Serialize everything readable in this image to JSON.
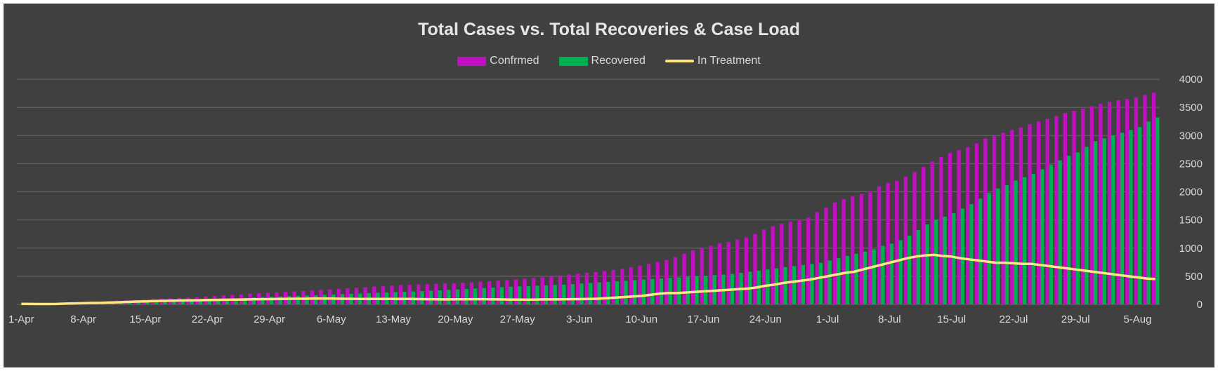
{
  "colors": {
    "background": "#404040",
    "grid": "#6b6b6b",
    "text": "#d9d9d9",
    "confirmed": "#c20fc2",
    "recovered": "#00b050",
    "in_treatment": "#ffe680"
  },
  "chart_data": {
    "type": "bar",
    "title": "Total Cases vs. Total Recoveries & Case Load",
    "legend_position": "top-center",
    "grid": true,
    "y_axis_position": "right",
    "ylim": [
      0,
      4000
    ],
    "y_ticks": [
      "0",
      "500",
      "1000",
      "1500",
      "2000",
      "2500",
      "3000",
      "3500",
      "4000"
    ],
    "x_tick_labels": [
      "1-Apr",
      "8-Apr",
      "15-Apr",
      "22-Apr",
      "29-Apr",
      "6-May",
      "13-May",
      "20-May",
      "27-May",
      "3-Jun",
      "10-Jun",
      "17-Jun",
      "24-Jun",
      "1-Jul",
      "8-Jul",
      "15-Jul",
      "22-Jul",
      "29-Jul",
      "5-Aug"
    ],
    "x_start": "1-Apr",
    "x_end": "5-Aug",
    "series": [
      {
        "name": "Confrmed",
        "kind": "bar",
        "values": [
          2,
          4,
          6,
          10,
          14,
          18,
          24,
          30,
          38,
          48,
          58,
          66,
          74,
          80,
          86,
          92,
          100,
          108,
          114,
          120,
          130,
          140,
          150,
          160,
          170,
          180,
          190,
          200,
          208,
          215,
          222,
          230,
          238,
          246,
          256,
          266,
          276,
          286,
          296,
          306,
          316,
          326,
          334,
          342,
          348,
          354,
          360,
          366,
          372,
          378,
          384,
          392,
          402,
          412,
          422,
          432,
          442,
          454,
          468,
          482,
          498,
          514,
          530,
          546,
          562,
          578,
          594,
          610,
          630,
          660,
          690,
          720,
          750,
          790,
          840,
          900,
          960,
          1000,
          1040,
          1080,
          1110,
          1150,
          1190,
          1250,
          1330,
          1390,
          1430,
          1470,
          1500,
          1540,
          1640,
          1720,
          1810,
          1870,
          1920,
          1960,
          2010,
          2100,
          2160,
          2200,
          2270,
          2350,
          2440,
          2540,
          2620,
          2690,
          2740,
          2790,
          2860,
          2950,
          3000,
          3050,
          3100,
          3140,
          3200,
          3250,
          3300,
          3350,
          3400,
          3440,
          3480,
          3520,
          3560,
          3600,
          3630,
          3650,
          3680,
          3720,
          3760
        ]
      },
      {
        "name": "Recovered",
        "kind": "bar",
        "values": [
          0,
          0,
          0,
          1,
          2,
          4,
          6,
          8,
          12,
          16,
          20,
          24,
          30,
          36,
          42,
          48,
          54,
          60,
          66,
          72,
          78,
          84,
          92,
          100,
          108,
          116,
          122,
          128,
          134,
          140,
          146,
          152,
          158,
          164,
          170,
          176,
          182,
          188,
          194,
          200,
          206,
          212,
          218,
          224,
          230,
          236,
          242,
          250,
          258,
          266,
          274,
          282,
          290,
          298,
          306,
          314,
          320,
          326,
          332,
          338,
          344,
          350,
          360,
          370,
          380,
          390,
          400,
          410,
          420,
          430,
          440,
          450,
          460,
          470,
          480,
          490,
          500,
          510,
          520,
          530,
          540,
          560,
          580,
          600,
          620,
          640,
          660,
          680,
          700,
          720,
          740,
          780,
          820,
          860,
          900,
          940,
          980,
          1040,
          1080,
          1140,
          1220,
          1320,
          1420,
          1500,
          1560,
          1620,
          1700,
          1780,
          1880,
          1980,
          2060,
          2120,
          2200,
          2260,
          2320,
          2400,
          2480,
          2560,
          2640,
          2700,
          2800,
          2900,
          2950,
          3000,
          3050,
          3100,
          3150,
          3250,
          3320
        ]
      },
      {
        "name": "In Treatment",
        "kind": "line",
        "values": [
          10,
          8,
          6,
          6,
          8,
          14,
          18,
          22,
          26,
          28,
          32,
          38,
          44,
          50,
          54,
          60,
          62,
          66,
          70,
          72,
          74,
          78,
          80,
          82,
          84,
          86,
          90,
          92,
          94,
          96,
          98,
          100,
          100,
          102,
          102,
          102,
          100,
          98,
          96,
          96,
          96,
          96,
          96,
          96,
          96,
          94,
          92,
          90,
          88,
          90,
          90,
          92,
          92,
          90,
          88,
          86,
          86,
          84,
          86,
          88,
          88,
          90,
          92,
          94,
          96,
          100,
          110,
          120,
          130,
          140,
          150,
          170,
          190,
          200,
          200,
          210,
          220,
          230,
          240,
          250,
          260,
          270,
          280,
          300,
          330,
          350,
          380,
          400,
          420,
          440,
          470,
          500,
          530,
          560,
          580,
          620,
          660,
          700,
          740,
          780,
          820,
          850,
          870,
          880,
          860,
          850,
          820,
          800,
          780,
          760,
          740,
          740,
          730,
          720,
          720,
          700,
          680,
          660,
          640,
          620,
          600,
          580,
          560,
          540,
          520,
          500,
          480,
          460,
          450
        ]
      }
    ]
  }
}
